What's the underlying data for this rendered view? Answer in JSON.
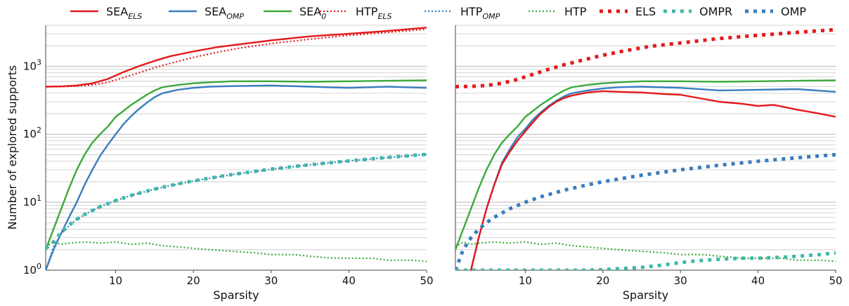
{
  "figure": {
    "ylabel": "Number of explored supports",
    "xlabel": "Sparsity"
  },
  "legend": [
    {
      "base": "SEA",
      "sub": "ELS",
      "italic": true,
      "color": "#e31a1c",
      "dash": "solid"
    },
    {
      "base": "SEA",
      "sub": "OMP",
      "italic": true,
      "color": "#3a7dbd",
      "dash": "solid"
    },
    {
      "base": "SEA",
      "sub": "0",
      "italic": false,
      "color": "#3aaa3a",
      "dash": "solid"
    },
    {
      "base": "HTP",
      "sub": "ELS",
      "italic": true,
      "color": "#e31a1c",
      "dash": "dot"
    },
    {
      "base": "HTP",
      "sub": "OMP",
      "italic": true,
      "color": "#3a7dbd",
      "dash": "dot"
    },
    {
      "base": "HTP",
      "sub": "",
      "italic": false,
      "color": "#3aaa3a",
      "dash": "dot"
    },
    {
      "base": "ELS",
      "sub": "",
      "italic": false,
      "color": "#e31a1c",
      "dash": "square"
    },
    {
      "base": "OMPR",
      "sub": "",
      "italic": false,
      "color": "#40b8a8",
      "dash": "square"
    },
    {
      "base": "OMP",
      "sub": "",
      "italic": false,
      "color": "#3a7dbd",
      "dash": "square"
    }
  ],
  "chart_data": [
    {
      "type": "line",
      "xlabel": "Sparsity",
      "ylabel": "Number of explored supports",
      "yscale": "log",
      "xlim": [
        1,
        50
      ],
      "ylim": [
        1,
        4000
      ],
      "xticks": [
        10,
        20,
        30,
        40,
        50
      ],
      "yticks": [
        {
          "value": 1,
          "label": "10^0"
        },
        {
          "value": 10,
          "label": "10^1"
        },
        {
          "value": 100,
          "label": "10^2"
        },
        {
          "value": 1000,
          "label": "10^3"
        }
      ],
      "grid": true,
      "series": [
        {
          "name": "SEA_ELS",
          "color": "#e31a1c",
          "style": "solid",
          "x": [
            1,
            3,
            5,
            7,
            9,
            11,
            13,
            15,
            17,
            20,
            23,
            26,
            30,
            35,
            40,
            45,
            50
          ],
          "y": [
            500,
            505,
            520,
            560,
            650,
            820,
            1000,
            1200,
            1400,
            1650,
            1900,
            2100,
            2400,
            2750,
            3000,
            3300,
            3700
          ]
        },
        {
          "name": "SEA_OMP",
          "color": "#3a7dbd",
          "style": "solid",
          "x": [
            1,
            2,
            3,
            4,
            5,
            6,
            7,
            8,
            9,
            10,
            11,
            12,
            13,
            14,
            15,
            16,
            18,
            20,
            22,
            25,
            30,
            35,
            40,
            45,
            50
          ],
          "y": [
            1,
            2,
            3.5,
            6,
            10,
            18,
            30,
            48,
            70,
            100,
            140,
            185,
            235,
            290,
            350,
            400,
            450,
            480,
            500,
            510,
            520,
            500,
            480,
            500,
            480
          ]
        },
        {
          "name": "SEA_0",
          "color": "#3aaa3a",
          "style": "solid",
          "x": [
            1,
            2,
            3,
            4,
            5,
            6,
            7,
            8,
            9,
            10,
            11,
            12,
            13,
            14,
            15,
            16,
            18,
            20,
            22,
            25,
            30,
            35,
            40,
            45,
            50
          ],
          "y": [
            2,
            4,
            8,
            16,
            30,
            50,
            75,
            100,
            130,
            180,
            220,
            270,
            320,
            380,
            440,
            490,
            530,
            560,
            580,
            600,
            600,
            590,
            600,
            610,
            620
          ]
        },
        {
          "name": "HTP_ELS",
          "color": "#e31a1c",
          "style": "dot",
          "x": [
            1,
            3,
            5,
            7,
            9,
            11,
            13,
            15,
            17,
            20,
            23,
            26,
            30,
            35,
            40,
            45,
            50
          ],
          "y": [
            500,
            500,
            510,
            530,
            580,
            680,
            800,
            950,
            1100,
            1350,
            1600,
            1850,
            2150,
            2500,
            2850,
            3150,
            3500
          ]
        },
        {
          "name": "HTP_OMP",
          "color": "#3a7dbd",
          "style": "dot",
          "x": [
            1,
            2,
            3,
            4,
            5,
            6,
            8,
            10,
            12,
            15,
            18,
            20,
            25,
            30,
            35,
            40,
            45,
            50
          ],
          "y": [
            1,
            2.2,
            3.4,
            4.5,
            5.6,
            6.6,
            8.6,
            10.6,
            12.6,
            15.6,
            18.5,
            20.5,
            25.5,
            30.5,
            35.5,
            40.5,
            45.5,
            50.5
          ]
        },
        {
          "name": "HTP",
          "color": "#3aaa3a",
          "style": "dot",
          "x": [
            1,
            2,
            3,
            4,
            6,
            8,
            10,
            12,
            14,
            16,
            18,
            20,
            22,
            25,
            28,
            30,
            33,
            35,
            38,
            40,
            43,
            45,
            48,
            50
          ],
          "y": [
            2.2,
            2.6,
            2.4,
            2.5,
            2.6,
            2.5,
            2.6,
            2.4,
            2.5,
            2.3,
            2.2,
            2.1,
            2.0,
            1.9,
            1.8,
            1.7,
            1.7,
            1.6,
            1.5,
            1.5,
            1.5,
            1.4,
            1.4,
            1.35
          ]
        },
        {
          "name": "OMPR",
          "color": "#40b8a8",
          "style": "square",
          "x": [
            1,
            2,
            3,
            4,
            5,
            6,
            8,
            10,
            12,
            15,
            18,
            20,
            25,
            30,
            35,
            40,
            45,
            50
          ],
          "y": [
            2.1,
            2.6,
            3.6,
            4.6,
            5.6,
            6.6,
            8.6,
            10.6,
            12.6,
            15.6,
            18.6,
            20.6,
            25.6,
            30.6,
            35.6,
            40.6,
            45.6,
            50.6
          ]
        }
      ]
    },
    {
      "type": "line",
      "xlabel": "Sparsity",
      "yscale": "log",
      "xlim": [
        1,
        50
      ],
      "ylim": [
        1,
        4000
      ],
      "xticks": [
        10,
        20,
        30,
        40,
        50
      ],
      "grid": true,
      "series": [
        {
          "name": "ELS",
          "color": "#e31a1c",
          "style": "square",
          "x": [
            1,
            3,
            5,
            7,
            9,
            11,
            13,
            15,
            17,
            20,
            23,
            26,
            30,
            35,
            40,
            45,
            50
          ],
          "y": [
            500,
            505,
            520,
            560,
            640,
            760,
            900,
            1050,
            1200,
            1450,
            1700,
            1950,
            2200,
            2550,
            2850,
            3150,
            3450
          ]
        },
        {
          "name": "SEA_0",
          "color": "#3aaa3a",
          "style": "solid",
          "x": [
            1,
            2,
            3,
            4,
            5,
            6,
            7,
            8,
            9,
            10,
            11,
            12,
            13,
            14,
            15,
            16,
            18,
            20,
            22,
            25,
            30,
            35,
            40,
            45,
            50
          ],
          "y": [
            2,
            4,
            8,
            16,
            30,
            50,
            75,
            100,
            130,
            180,
            220,
            270,
            320,
            380,
            440,
            490,
            530,
            560,
            580,
            600,
            600,
            590,
            600,
            610,
            620
          ]
        },
        {
          "name": "SEA_OMP",
          "color": "#3a7dbd",
          "style": "solid",
          "x": [
            3,
            4,
            5,
            6,
            7,
            8,
            9,
            10,
            11,
            12,
            13,
            14,
            15,
            16,
            18,
            20,
            22,
            25,
            30,
            35,
            40,
            45,
            50
          ],
          "y": [
            1,
            3,
            8,
            18,
            38,
            60,
            90,
            120,
            165,
            210,
            260,
            310,
            360,
            400,
            440,
            470,
            490,
            500,
            480,
            440,
            450,
            460,
            420
          ]
        },
        {
          "name": "SEA_ELS",
          "color": "#e31a1c",
          "style": "solid",
          "x": [
            3,
            4,
            5,
            6,
            7,
            8,
            9,
            10,
            11,
            12,
            13,
            14,
            15,
            16,
            18,
            20,
            22,
            25,
            28,
            30,
            33,
            35,
            38,
            40,
            42,
            45,
            48,
            50
          ],
          "y": [
            1,
            3,
            8,
            18,
            36,
            55,
            80,
            110,
            150,
            200,
            250,
            300,
            340,
            370,
            410,
            430,
            420,
            410,
            390,
            380,
            330,
            300,
            280,
            260,
            270,
            230,
            200,
            180
          ]
        },
        {
          "name": "OMP",
          "color": "#3a7dbd",
          "style": "square",
          "x": [
            1,
            2,
            3,
            4,
            5,
            6,
            8,
            10,
            12,
            15,
            18,
            20,
            25,
            30,
            35,
            40,
            45,
            50
          ],
          "y": [
            1,
            2,
            3,
            4,
            5,
            6,
            8,
            10,
            12,
            15,
            18,
            20,
            25,
            30,
            35,
            40,
            45,
            50
          ]
        },
        {
          "name": "HTP",
          "color": "#3aaa3a",
          "style": "dot",
          "x": [
            1,
            2,
            3,
            4,
            6,
            8,
            10,
            12,
            14,
            16,
            18,
            20,
            22,
            25,
            28,
            30,
            33,
            35,
            38,
            40,
            43,
            45,
            48,
            50
          ],
          "y": [
            2.2,
            2.6,
            2.4,
            2.5,
            2.6,
            2.5,
            2.6,
            2.4,
            2.5,
            2.3,
            2.2,
            2.1,
            2.0,
            1.9,
            1.8,
            1.7,
            1.7,
            1.6,
            1.5,
            1.5,
            1.5,
            1.4,
            1.4,
            1.35
          ]
        },
        {
          "name": "OMPR",
          "color": "#40b8a8",
          "style": "square",
          "x": [
            1,
            5,
            10,
            15,
            18,
            20,
            22,
            25,
            28,
            30,
            33,
            35,
            38,
            40,
            43,
            45,
            48,
            50
          ],
          "y": [
            1,
            1,
            1,
            1,
            1,
            1.02,
            1.05,
            1.1,
            1.2,
            1.3,
            1.4,
            1.45,
            1.5,
            1.5,
            1.55,
            1.6,
            1.7,
            1.8
          ]
        }
      ]
    }
  ]
}
